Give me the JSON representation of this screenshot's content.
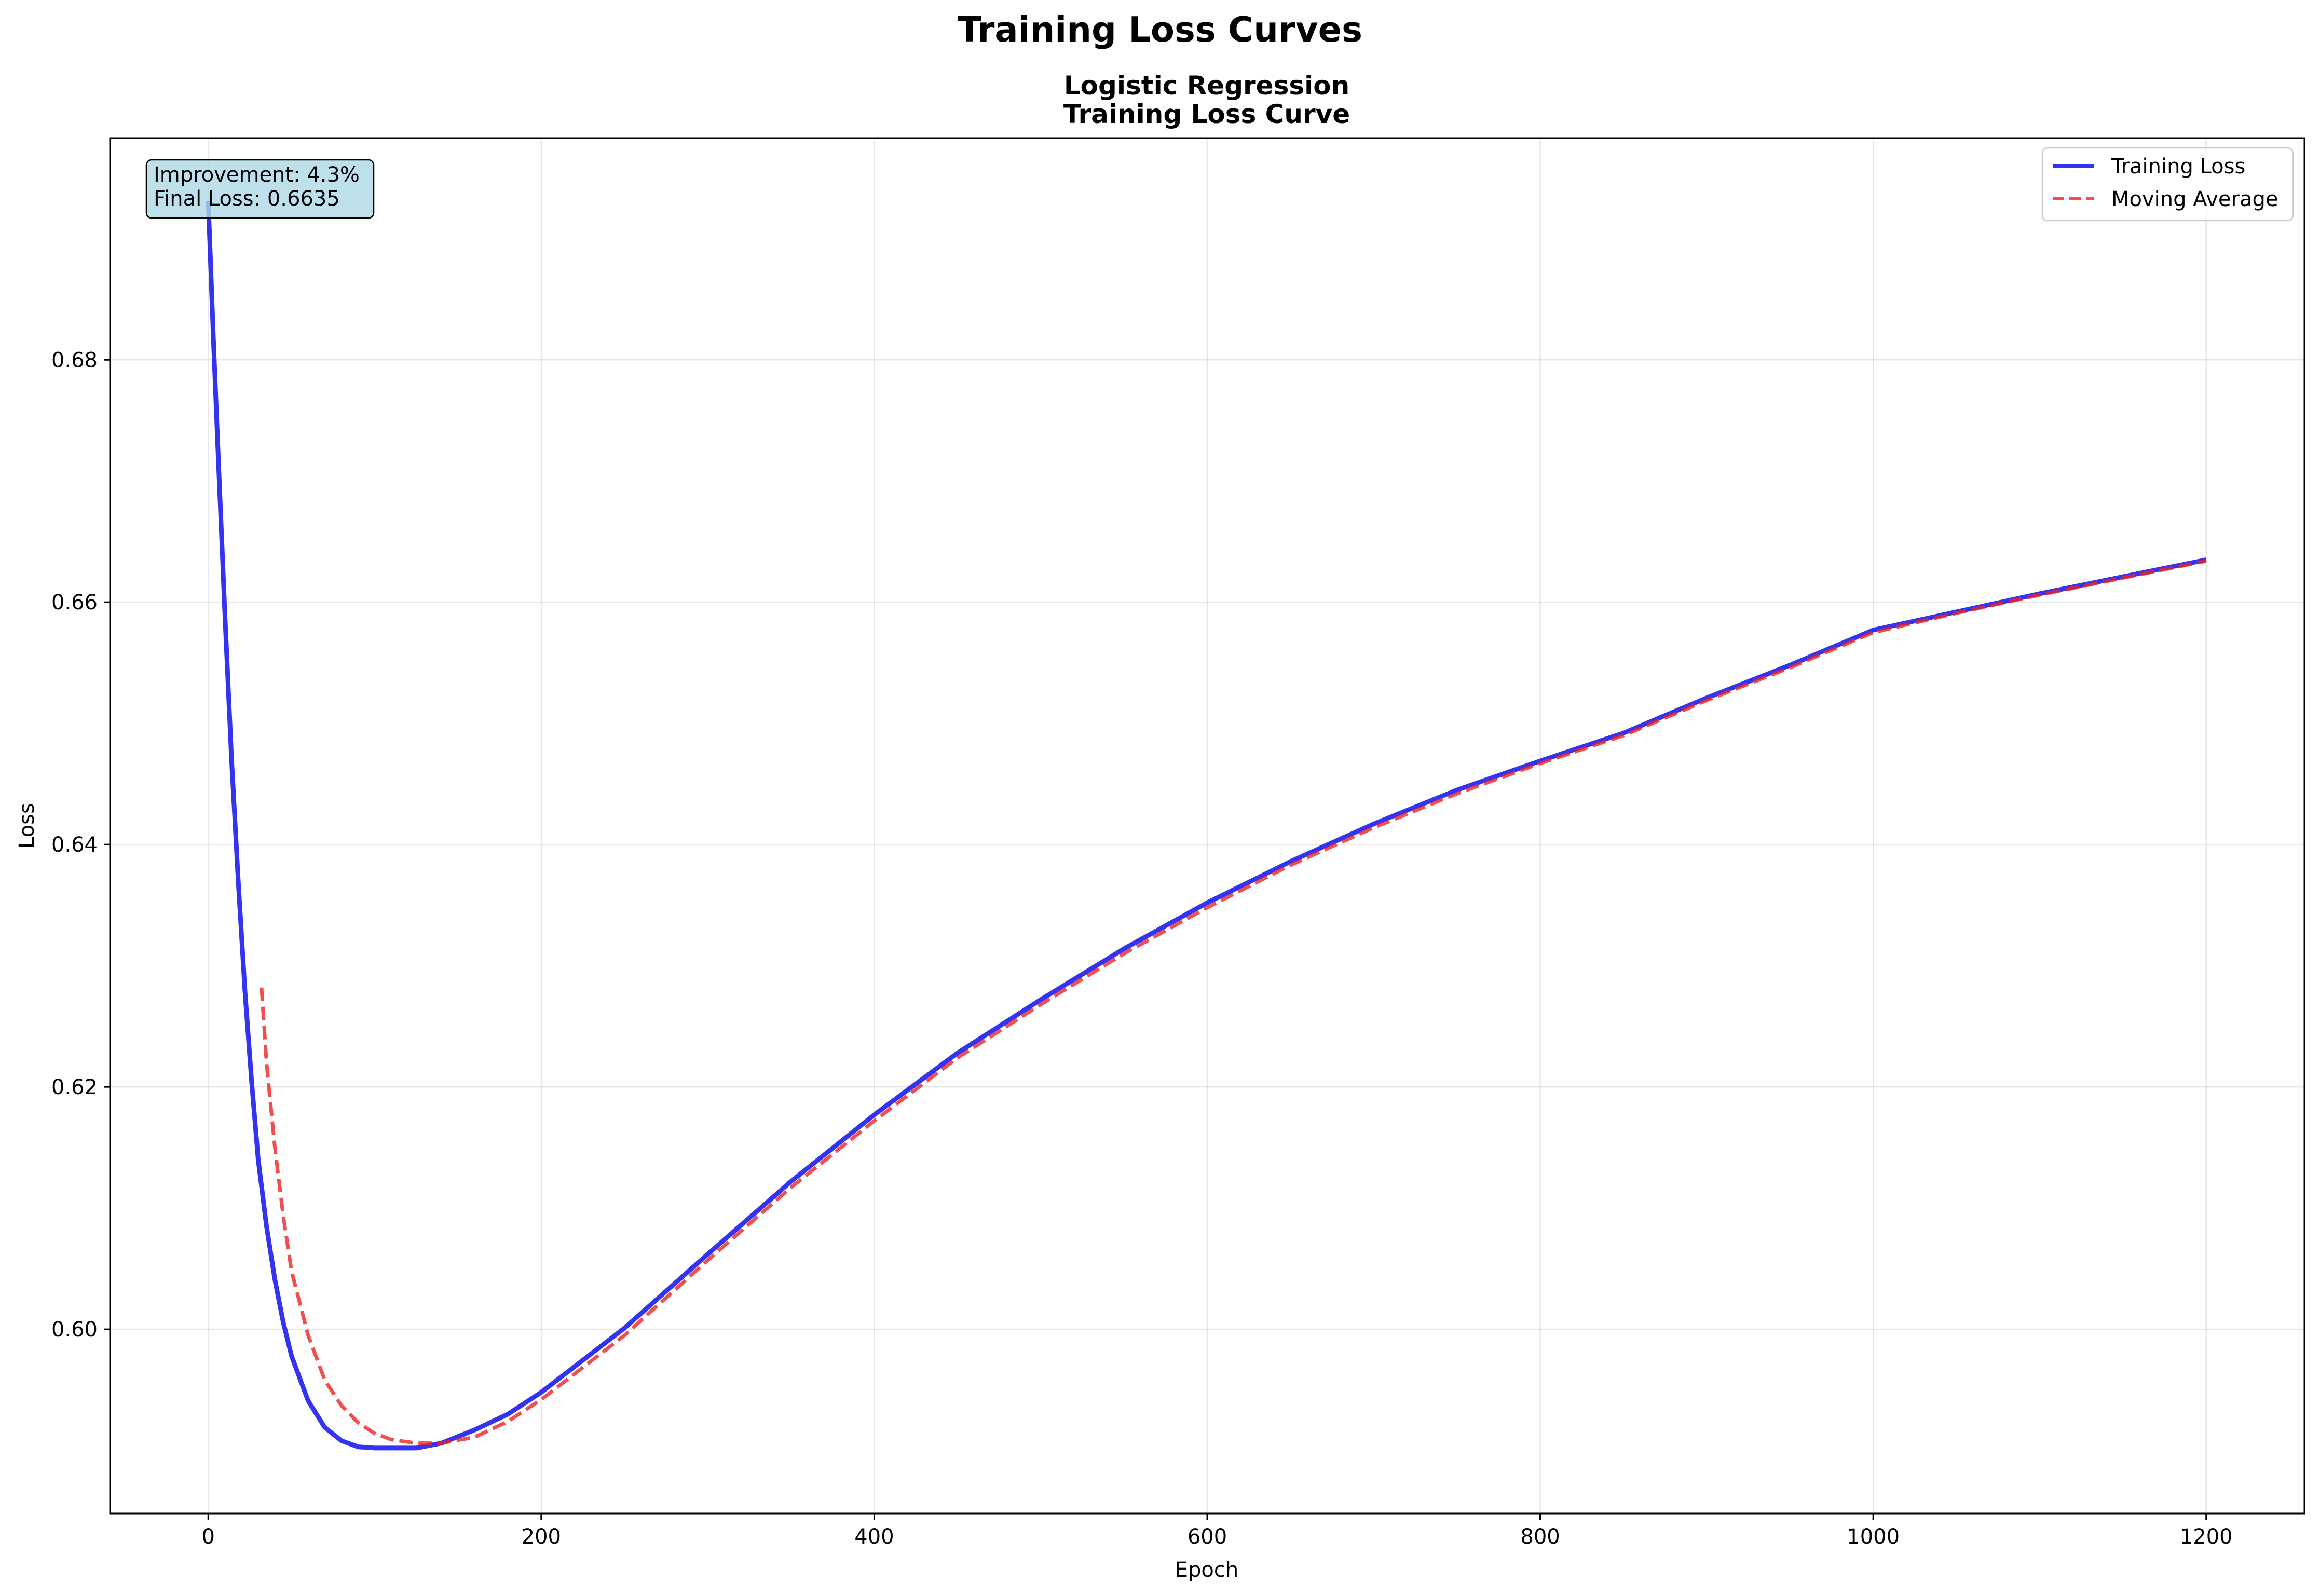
{
  "chart_data": {
    "type": "line",
    "suptitle": "Training Loss Curves",
    "title_line1": "Logistic Regression",
    "title_line2": "Training Loss Curve",
    "xlabel": "Epoch",
    "ylabel": "Loss",
    "xlim": [
      -59,
      1259
    ],
    "ylim": [
      0.5848,
      0.6983
    ],
    "xticks": [
      0,
      200,
      400,
      600,
      800,
      1000,
      1200
    ],
    "xtick_labels": [
      "0",
      "200",
      "400",
      "600",
      "800",
      "1000",
      "1200"
    ],
    "yticks": [
      0.6,
      0.62,
      0.64,
      0.66,
      0.68
    ],
    "ytick_labels": [
      "0.60",
      "0.62",
      "0.64",
      "0.66",
      "0.68"
    ],
    "grid": true,
    "legend_position": "top-right",
    "series": [
      {
        "name": "Training Loss",
        "color": "#0000ee",
        "style": "solid",
        "x": [
          0,
          3,
          6,
          10,
          14,
          18,
          22,
          26,
          30,
          35,
          40,
          45,
          50,
          60,
          70,
          80,
          90,
          100,
          110,
          125,
          140,
          160,
          180,
          200,
          250,
          300,
          350,
          400,
          450,
          500,
          550,
          600,
          650,
          700,
          750,
          800,
          850,
          900,
          950,
          1000,
          1050,
          1100,
          1150,
          1200
        ],
        "y": [
          0.6931,
          0.682,
          0.672,
          0.659,
          0.647,
          0.637,
          0.628,
          0.6205,
          0.614,
          0.6085,
          0.6041,
          0.6006,
          0.5978,
          0.5941,
          0.5919,
          0.5908,
          0.5903,
          0.5902,
          0.5902,
          0.5902,
          0.5906,
          0.5917,
          0.593,
          0.5948,
          0.6001,
          0.6062,
          0.6122,
          0.6177,
          0.6228,
          0.6272,
          0.6314,
          0.6352,
          0.6386,
          0.6417,
          0.6445,
          0.6469,
          0.6492,
          0.6521,
          0.6548,
          0.6577,
          0.6592,
          0.6607,
          0.6621,
          0.6635
        ]
      },
      {
        "name": "Moving Average",
        "color": "#ee2222",
        "style": "dashed",
        "x": [
          32,
          35,
          40,
          45,
          50,
          60,
          70,
          80,
          90,
          100,
          110,
          125,
          140,
          160,
          180,
          200,
          250,
          300,
          350,
          400,
          450,
          500,
          550,
          600,
          650,
          700,
          750,
          800,
          850,
          900,
          950,
          1000,
          1050,
          1100,
          1150,
          1200
        ],
        "y": [
          0.6282,
          0.622,
          0.615,
          0.6094,
          0.6048,
          0.5995,
          0.5958,
          0.5937,
          0.5923,
          0.5914,
          0.5909,
          0.5906,
          0.5906,
          0.5911,
          0.5924,
          0.5942,
          0.5995,
          0.6057,
          0.6117,
          0.6172,
          0.6224,
          0.6268,
          0.631,
          0.6348,
          0.6383,
          0.6414,
          0.6442,
          0.6467,
          0.649,
          0.6519,
          0.6546,
          0.6575,
          0.6591,
          0.6606,
          0.662,
          0.6634
        ]
      }
    ],
    "annotation": {
      "line1": "Improvement: 4.3%",
      "line2": "Final Loss: 0.6635",
      "box_color": "#add8e6"
    }
  }
}
